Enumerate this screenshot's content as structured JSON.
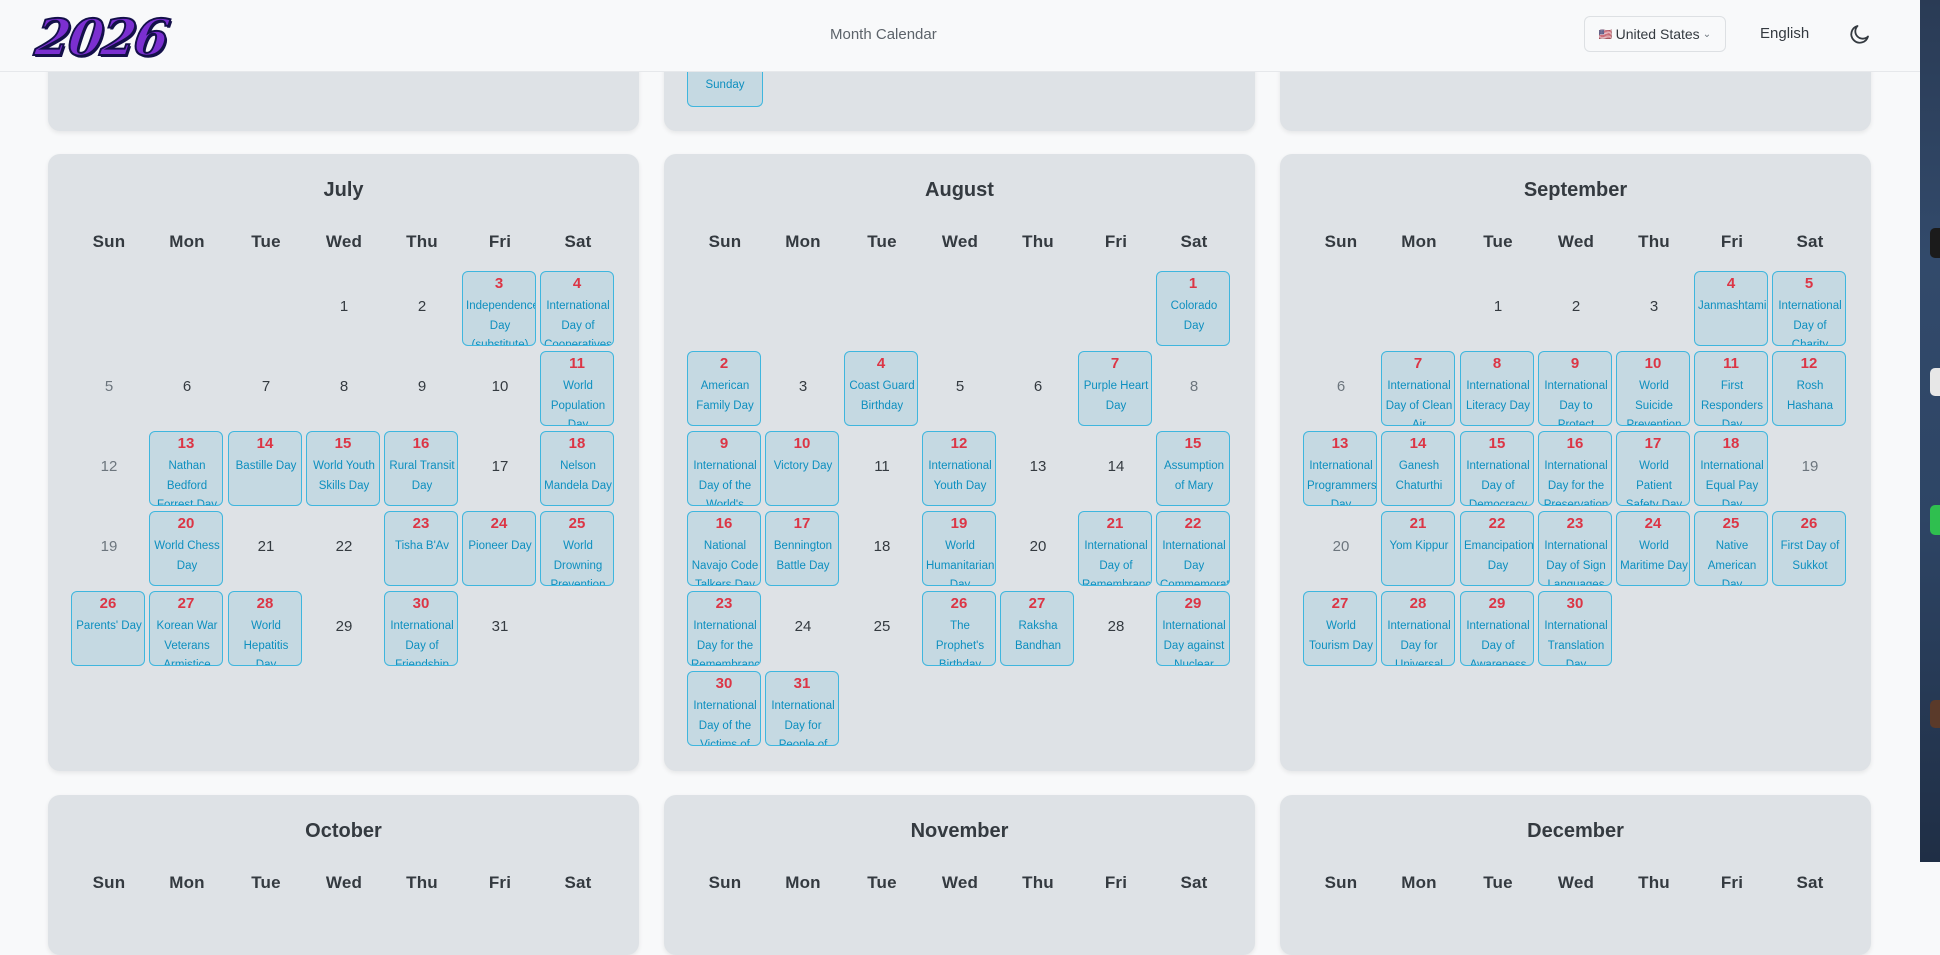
{
  "header": {
    "logo": "2026",
    "nav_title": "Month Calendar",
    "country_flag": "🇺🇸",
    "country": "United States",
    "language": "English"
  },
  "fragment": {
    "label": "Sunday"
  },
  "weekdays": [
    "Sun",
    "Mon",
    "Tue",
    "Wed",
    "Thu",
    "Fri",
    "Sat"
  ],
  "months": [
    {
      "name": "July",
      "start_dow": 3,
      "days": 31,
      "holidays": {
        "3": "Independence Day (substitute)",
        "4": "International Day of Cooperatives",
        "11": "World Population Day",
        "13": "Nathan Bedford Forrest Day",
        "14": "Bastille Day",
        "15": "World Youth Skills Day",
        "16": "Rural Transit Day",
        "18": "Nelson Mandela Day",
        "20": "World Chess Day",
        "23": "Tisha B'Av",
        "24": "Pioneer Day",
        "25": "World Drowning Prevention Day",
        "26": "Parents' Day",
        "27": "Korean War Veterans Armistice Day",
        "28": "World Hepatitis Day",
        "30": "International Day of Friendship"
      }
    },
    {
      "name": "August",
      "start_dow": 6,
      "days": 31,
      "holidays": {
        "1": "Colorado Day",
        "2": "American Family Day",
        "4": "Coast Guard Birthday",
        "7": "Purple Heart Day",
        "9": "International Day of the World's Indigenous Peoples",
        "10": "Victory Day",
        "12": "International Youth Day",
        "15": "Assumption of Mary",
        "16": "National Navajo Code Talkers Day",
        "17": "Bennington Battle Day",
        "19": "World Humanitarian Day",
        "21": "International Day of Remembrance",
        "22": "International Day Commemorating Victims",
        "23": "International Day for the Remembrance of the Slave Trade",
        "26": "The Prophet's Birthday",
        "27": "Raksha Bandhan",
        "29": "International Day against Nuclear Tests",
        "30": "International Day of the Victims of Enforced Disappearances",
        "31": "International Day for People of African Descent"
      }
    },
    {
      "name": "September",
      "start_dow": 2,
      "days": 30,
      "holidays": {
        "4": "Janmashtami",
        "5": "International Day of Charity",
        "7": "International Day of Clean Air",
        "8": "International Literacy Day",
        "9": "International Day to Protect Education",
        "10": "World Suicide Prevention Day",
        "11": "First Responders Day",
        "12": "Rosh Hashana",
        "13": "International Programmers' Day",
        "14": "Ganesh Chaturthi",
        "15": "International Day of Democracy",
        "16": "International Day for the Preservation of the Ozone Layer",
        "17": "World Patient Safety Day",
        "18": "International Equal Pay Day",
        "21": "Yom Kippur",
        "22": "Emancipation Day",
        "23": "International Day of Sign Languages",
        "24": "World Maritime Day",
        "25": "Native American Day",
        "26": "First Day of Sukkot",
        "27": "World Tourism Day",
        "28": "International Day for Universal Access to Information",
        "29": "International Day of Awareness of Food Loss",
        "30": "International Translation Day"
      }
    },
    {
      "name": "October",
      "start_dow": 4,
      "days": 31,
      "holidays": {}
    },
    {
      "name": "November",
      "start_dow": 0,
      "days": 30,
      "holidays": {}
    },
    {
      "name": "December",
      "start_dow": 2,
      "days": 31,
      "holidays": {}
    }
  ]
}
